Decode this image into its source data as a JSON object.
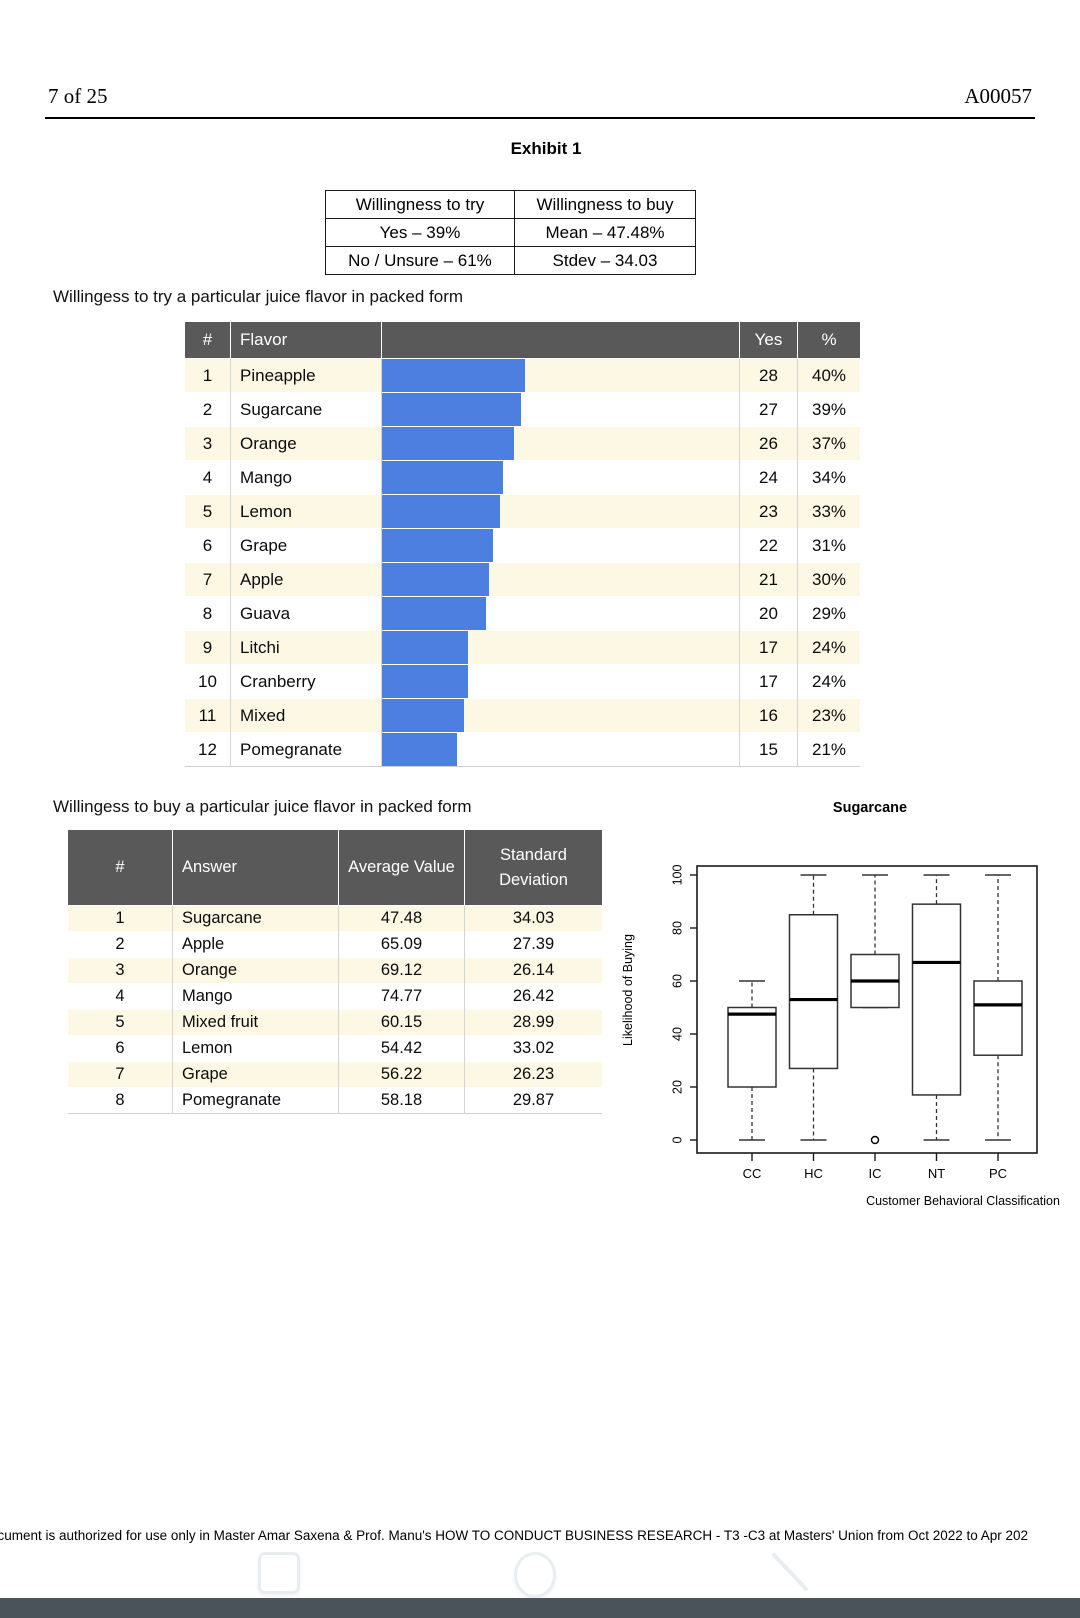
{
  "header": {
    "page_number": "7 of 25",
    "doc_code": "A00057"
  },
  "exhibit": {
    "title": "Exhibit 1"
  },
  "summary_table": {
    "head": [
      "Willingness to try",
      "Willingness to buy"
    ],
    "rows": [
      [
        "Yes – 39%",
        "Mean – 47.48%"
      ],
      [
        "No / Unsure – 61%",
        "Stdev – 34.03"
      ]
    ]
  },
  "try_section": {
    "heading": "Willingess to try a particular juice flavor in packed form",
    "headers": {
      "num": "#",
      "flavor": "Flavor",
      "bar": "",
      "yes": "Yes",
      "pct": "%"
    },
    "rows": [
      {
        "num": "1",
        "flavor": "Pineapple",
        "yes": "28",
        "pct": "40%",
        "bar_pct": 40
      },
      {
        "num": "2",
        "flavor": "Sugarcane",
        "yes": "27",
        "pct": "39%",
        "bar_pct": 39
      },
      {
        "num": "3",
        "flavor": "Orange",
        "yes": "26",
        "pct": "37%",
        "bar_pct": 37
      },
      {
        "num": "4",
        "flavor": "Mango",
        "yes": "24",
        "pct": "34%",
        "bar_pct": 34
      },
      {
        "num": "5",
        "flavor": "Lemon",
        "yes": "23",
        "pct": "33%",
        "bar_pct": 33
      },
      {
        "num": "6",
        "flavor": "Grape",
        "yes": "22",
        "pct": "31%",
        "bar_pct": 31
      },
      {
        "num": "7",
        "flavor": "Apple",
        "yes": "21",
        "pct": "30%",
        "bar_pct": 30
      },
      {
        "num": "8",
        "flavor": "Guava",
        "yes": "20",
        "pct": "29%",
        "bar_pct": 29
      },
      {
        "num": "9",
        "flavor": "Litchi",
        "yes": "17",
        "pct": "24%",
        "bar_pct": 24
      },
      {
        "num": "10",
        "flavor": "Cranberry",
        "yes": "17",
        "pct": "24%",
        "bar_pct": 24
      },
      {
        "num": "11",
        "flavor": "Mixed",
        "yes": "16",
        "pct": "23%",
        "bar_pct": 23
      },
      {
        "num": "12",
        "flavor": "Pomegranate",
        "yes": "15",
        "pct": "21%",
        "bar_pct": 21
      }
    ]
  },
  "buy_section": {
    "heading": "Willingess to buy a particular juice flavor in packed form",
    "headers": {
      "num": "#",
      "answer": "Answer",
      "avg": "Average Value",
      "std": "Standard Deviation"
    },
    "rows": [
      {
        "num": "1",
        "answer": "Sugarcane",
        "avg": "47.48",
        "std": "34.03"
      },
      {
        "num": "2",
        "answer": "Apple",
        "avg": "65.09",
        "std": "27.39"
      },
      {
        "num": "3",
        "answer": "Orange",
        "avg": "69.12",
        "std": "26.14"
      },
      {
        "num": "4",
        "answer": "Mango",
        "avg": "74.77",
        "std": "26.42"
      },
      {
        "num": "5",
        "answer": "Mixed fruit",
        "avg": "60.15",
        "std": "28.99"
      },
      {
        "num": "6",
        "answer": "Lemon",
        "avg": "54.42",
        "std": "33.02"
      },
      {
        "num": "7",
        "answer": "Grape",
        "avg": "56.22",
        "std": "26.23"
      },
      {
        "num": "8",
        "answer": "Pomegranate",
        "avg": "58.18",
        "std": "29.87"
      }
    ]
  },
  "chart_data": {
    "type": "boxplot",
    "title": "Sugarcane",
    "xlabel": "Customer Behavioral Classification",
    "ylabel": "Likelihood of Buying",
    "ylim": [
      0,
      100
    ],
    "yticks": [
      0,
      20,
      40,
      60,
      80,
      100
    ],
    "categories": [
      "CC",
      "HC",
      "IC",
      "NT",
      "PC"
    ],
    "boxes": [
      {
        "category": "CC",
        "whisker_low": 0,
        "q1": 20,
        "median": 47.5,
        "q3": 50,
        "whisker_high": 60,
        "outliers": []
      },
      {
        "category": "HC",
        "whisker_low": 0,
        "q1": 27,
        "median": 53,
        "q3": 85,
        "whisker_high": 100,
        "outliers": []
      },
      {
        "category": "IC",
        "whisker_low": 50,
        "q1": 50,
        "median": 60,
        "q3": 70,
        "whisker_high": 100,
        "outliers": [
          0
        ]
      },
      {
        "category": "NT",
        "whisker_low": 0,
        "q1": 17,
        "median": 67,
        "q3": 89,
        "whisker_high": 100,
        "outliers": []
      },
      {
        "category": "PC",
        "whisker_low": 0,
        "q1": 32,
        "median": 51,
        "q3": 60,
        "whisker_high": 100,
        "outliers": []
      }
    ],
    "legend": null,
    "grid": false
  },
  "footer": {
    "notice": "ocument is authorized for use only in Master Amar Saxena & Prof. Manu's HOW TO CONDUCT BUSINESS RESEARCH - T3 -C3 at Masters' Union from Oct 2022 to Apr 202"
  },
  "nav_bar": {
    "icons": [
      "recents-icon",
      "home-icon",
      "back-icon"
    ]
  },
  "colors": {
    "accent_blue": "#4c7fe0",
    "table_header_bg": "#595959",
    "row_cream": "#fdf8e4",
    "bottom_bar": "#4a525a"
  }
}
